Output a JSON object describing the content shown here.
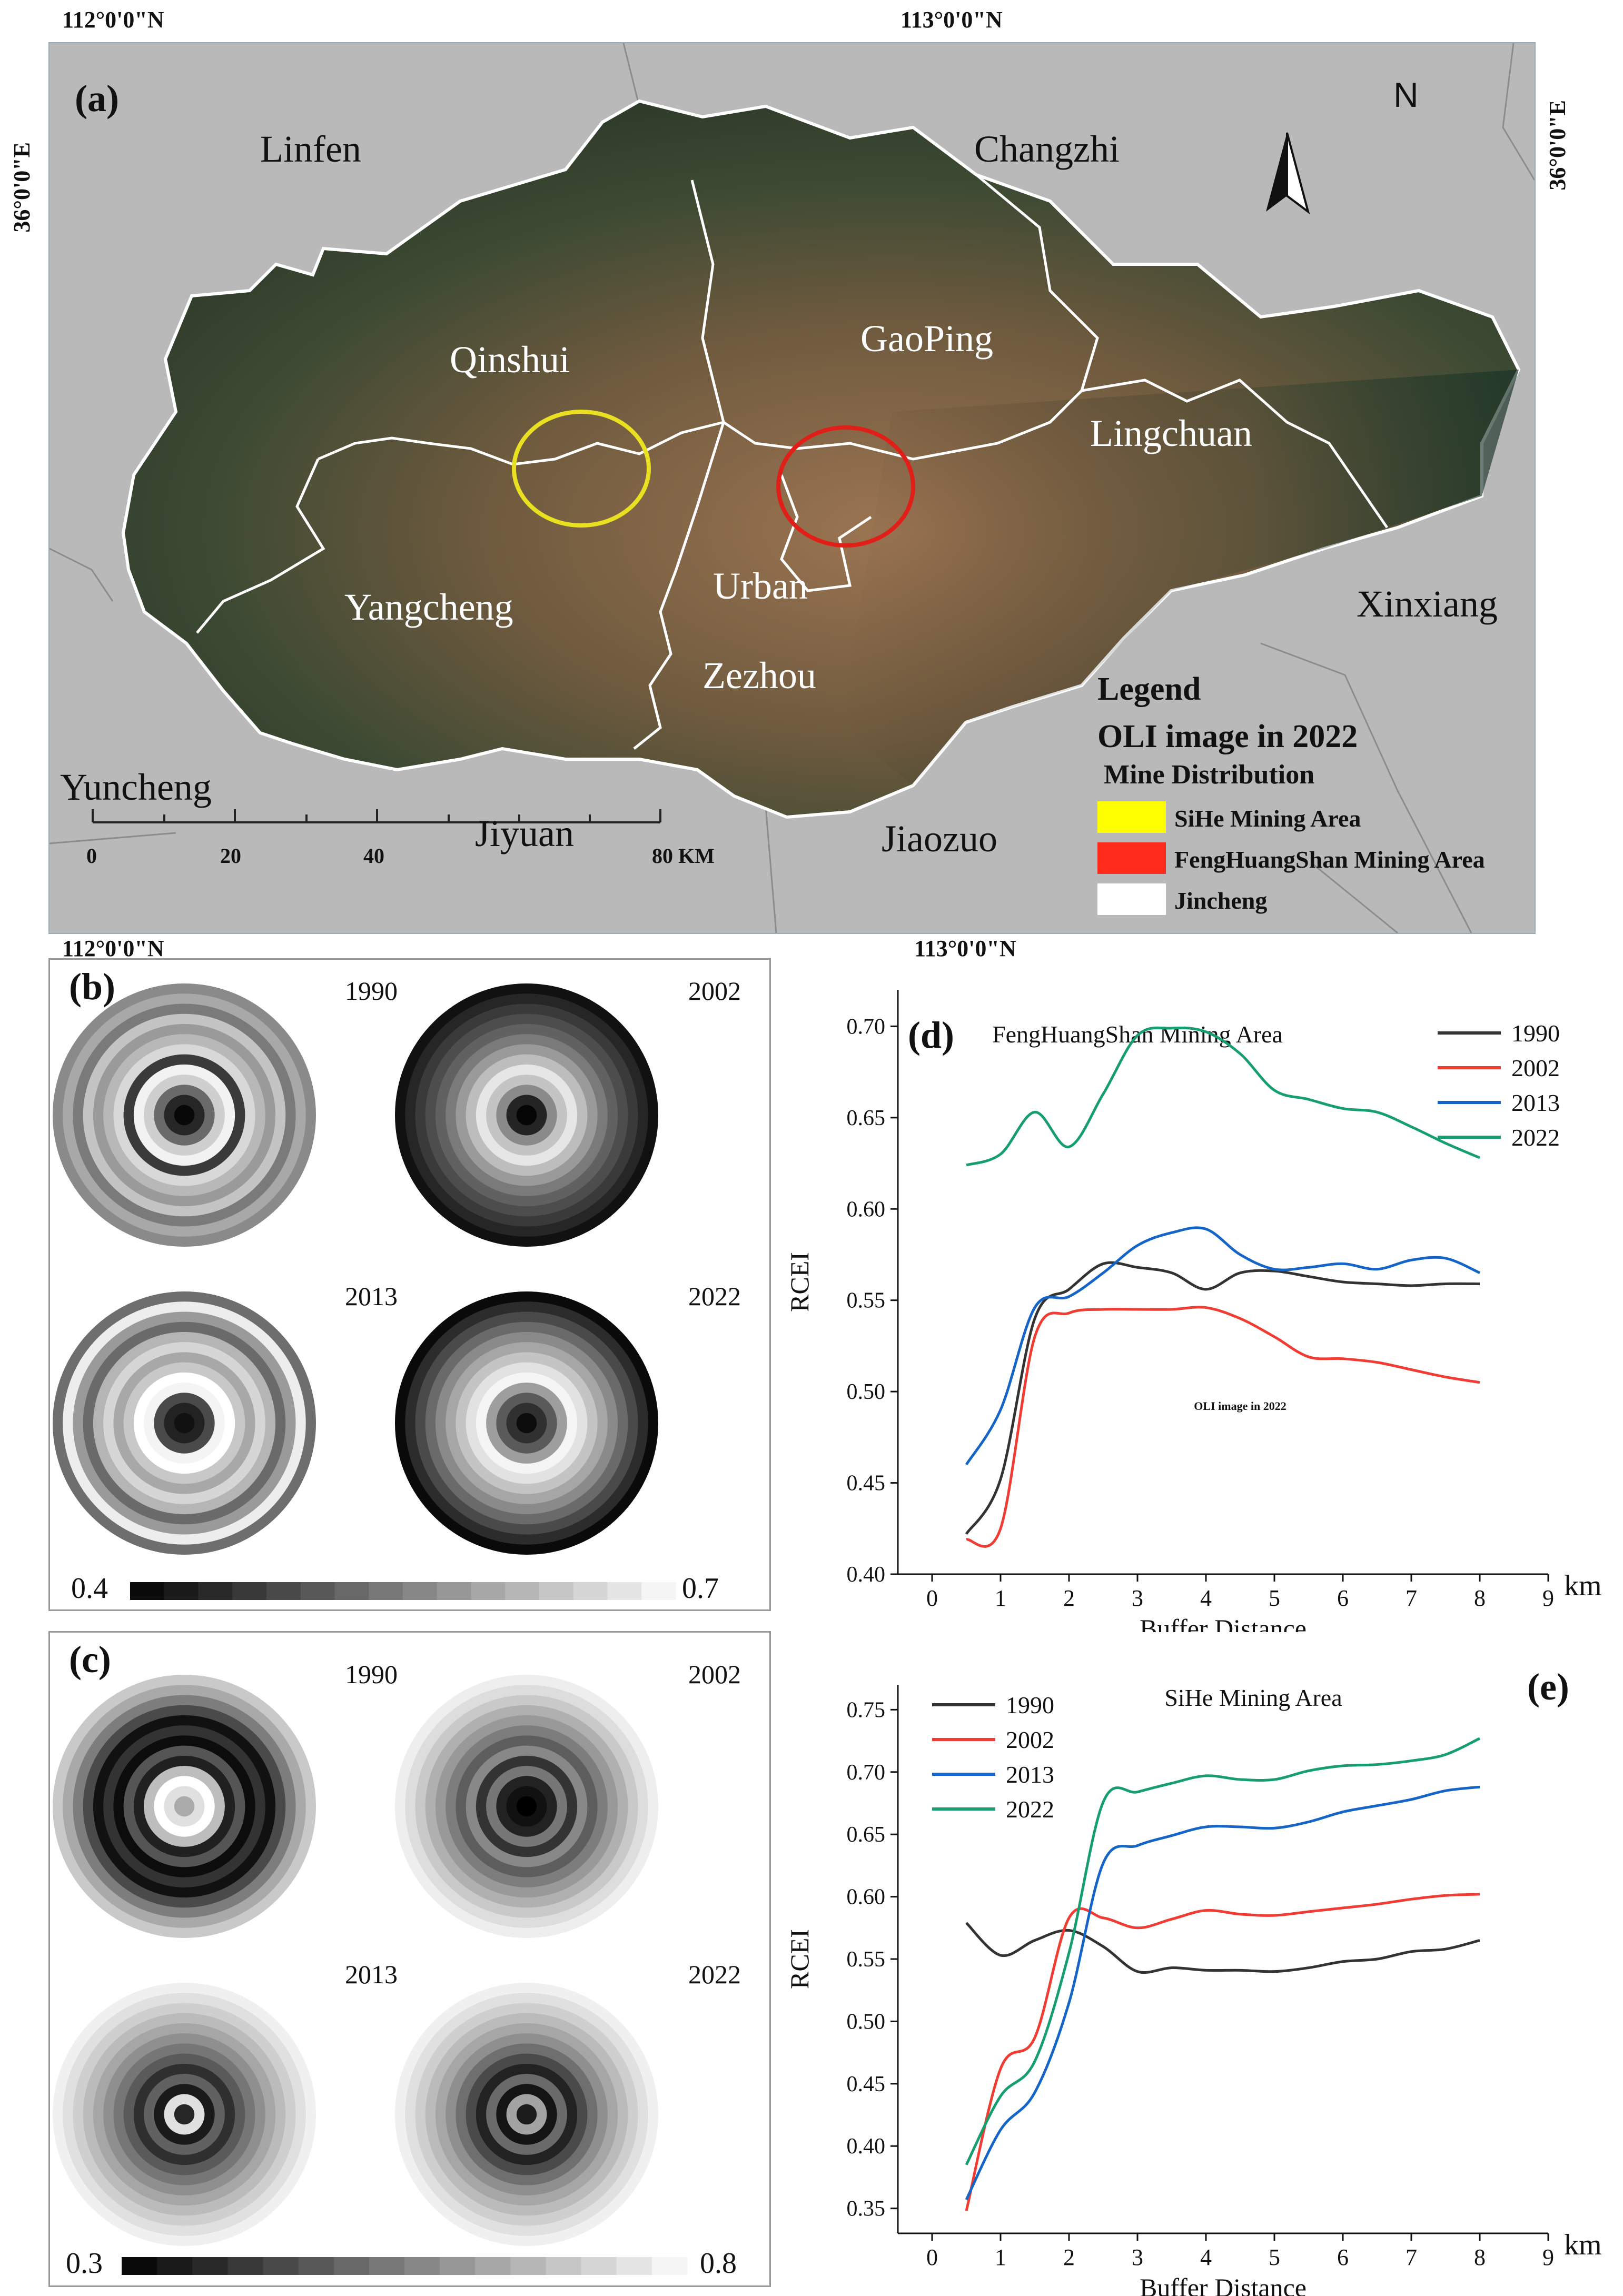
{
  "panel_a": {
    "tag": "(a)",
    "coords": {
      "top_left": "112°0'0\"N",
      "top_right": "113°0'0\"N",
      "bottom_left": "112°0'0\"N",
      "bottom_right": "113°0'0\"N",
      "left": "36°0'0\"E",
      "right": "36°0'0\"E"
    },
    "north": "N",
    "outer_labels": [
      "Linfen",
      "Changzhi",
      "Xinxiang",
      "Yuncheng",
      "Jiyuan",
      "Jiaozuo"
    ],
    "inner_labels": [
      "Qinshui",
      "GaoPing",
      "Lingchuan",
      "Yangcheng",
      "Urban",
      "Zezhou"
    ],
    "scalebar": {
      "ticks": [
        "0",
        "20",
        "40",
        "80 KM"
      ]
    },
    "legend": {
      "title": "Legend",
      "subtitle": "OLI image in 2022",
      "mine_heading": "Mine Distribution",
      "items": [
        {
          "label": "SiHe Mining Area",
          "color": "#ffff00"
        },
        {
          "label": "FengHuangShan Mining Area",
          "color": "#ff2a1a"
        },
        {
          "label": "Jincheng",
          "color": "#ffffff"
        }
      ]
    }
  },
  "panel_b": {
    "tag": "(b)",
    "years": [
      "1990",
      "2002",
      "2013",
      "2022"
    ],
    "scale_min": "0.4",
    "scale_max": "0.7"
  },
  "panel_c": {
    "tag": "(c)",
    "years": [
      "1990",
      "2002",
      "2013",
      "2022"
    ],
    "scale_min": "0.3",
    "scale_max": "0.8"
  },
  "chart_data": [
    {
      "type": "line",
      "panel": "(d)",
      "title": "FengHuangShan Mining Area",
      "annotation": "OLI image in 2022",
      "xlabel": "Buffer Distance",
      "x_unit": "km",
      "ylabel": "RCEI",
      "xlim": [
        -0.5,
        9
      ],
      "ylim": [
        0.4,
        0.72
      ],
      "xticks": [
        "0",
        "1",
        "2",
        "3",
        "4",
        "5",
        "6",
        "7",
        "8",
        "9"
      ],
      "yticks": [
        "0.40",
        "0.45",
        "0.50",
        "0.55",
        "0.60",
        "0.65",
        "0.70"
      ],
      "legend": "top-right",
      "x": [
        0.5,
        1.0,
        1.5,
        2.0,
        2.5,
        3.0,
        3.5,
        4.0,
        4.5,
        5.0,
        5.5,
        6.0,
        6.5,
        7.0,
        7.5,
        8.0
      ],
      "series": [
        {
          "name": "1990",
          "color": "#333333",
          "values": [
            0.422,
            0.452,
            0.54,
            0.556,
            0.57,
            0.568,
            0.565,
            0.556,
            0.565,
            0.566,
            0.563,
            0.56,
            0.559,
            0.558,
            0.559,
            0.559
          ]
        },
        {
          "name": "2002",
          "color": "#f03c32",
          "values": [
            0.419,
            0.425,
            0.53,
            0.543,
            0.545,
            0.545,
            0.545,
            0.546,
            0.54,
            0.53,
            0.519,
            0.518,
            0.516,
            0.512,
            0.508,
            0.505
          ]
        },
        {
          "name": "2013",
          "color": "#1565c8",
          "values": [
            0.46,
            0.49,
            0.546,
            0.552,
            0.565,
            0.58,
            0.587,
            0.589,
            0.575,
            0.567,
            0.568,
            0.57,
            0.567,
            0.572,
            0.573,
            0.565
          ]
        },
        {
          "name": "2022",
          "color": "#169e6e",
          "values": [
            0.624,
            0.63,
            0.653,
            0.634,
            0.663,
            0.695,
            0.699,
            0.697,
            0.685,
            0.665,
            0.66,
            0.655,
            0.653,
            0.645,
            0.636,
            0.628
          ]
        }
      ]
    },
    {
      "type": "line",
      "panel": "(e)",
      "title": "SiHe Mining Area",
      "xlabel": "Buffer Distance",
      "x_unit": "km",
      "ylabel": "RCEI",
      "xlim": [
        -0.5,
        9
      ],
      "ylim": [
        0.33,
        0.77
      ],
      "xticks": [
        "0",
        "1",
        "2",
        "3",
        "4",
        "5",
        "6",
        "7",
        "8",
        "9"
      ],
      "yticks": [
        "0.35",
        "0.40",
        "0.45",
        "0.50",
        "0.55",
        "0.60",
        "0.65",
        "0.70",
        "0.75"
      ],
      "legend": "top-left",
      "x": [
        0.5,
        1.0,
        1.5,
        2.0,
        2.5,
        3.0,
        3.5,
        4.0,
        4.5,
        5.0,
        5.5,
        6.0,
        6.5,
        7.0,
        7.5,
        8.0
      ],
      "series": [
        {
          "name": "1990",
          "color": "#333333",
          "values": [
            0.579,
            0.553,
            0.565,
            0.573,
            0.56,
            0.54,
            0.543,
            0.541,
            0.541,
            0.54,
            0.543,
            0.548,
            0.55,
            0.556,
            0.558,
            0.565
          ]
        },
        {
          "name": "2002",
          "color": "#f03c32",
          "values": [
            0.348,
            0.462,
            0.487,
            0.583,
            0.583,
            0.575,
            0.582,
            0.589,
            0.586,
            0.585,
            0.588,
            0.591,
            0.594,
            0.598,
            0.601,
            0.602
          ]
        },
        {
          "name": "2013",
          "color": "#1565c8",
          "values": [
            0.357,
            0.413,
            0.443,
            0.515,
            0.627,
            0.641,
            0.649,
            0.656,
            0.656,
            0.655,
            0.66,
            0.668,
            0.673,
            0.678,
            0.685,
            0.688
          ]
        },
        {
          "name": "2022",
          "color": "#169e6e",
          "values": [
            0.385,
            0.44,
            0.468,
            0.555,
            0.676,
            0.684,
            0.691,
            0.697,
            0.694,
            0.694,
            0.701,
            0.705,
            0.706,
            0.709,
            0.714,
            0.727
          ]
        }
      ]
    }
  ]
}
